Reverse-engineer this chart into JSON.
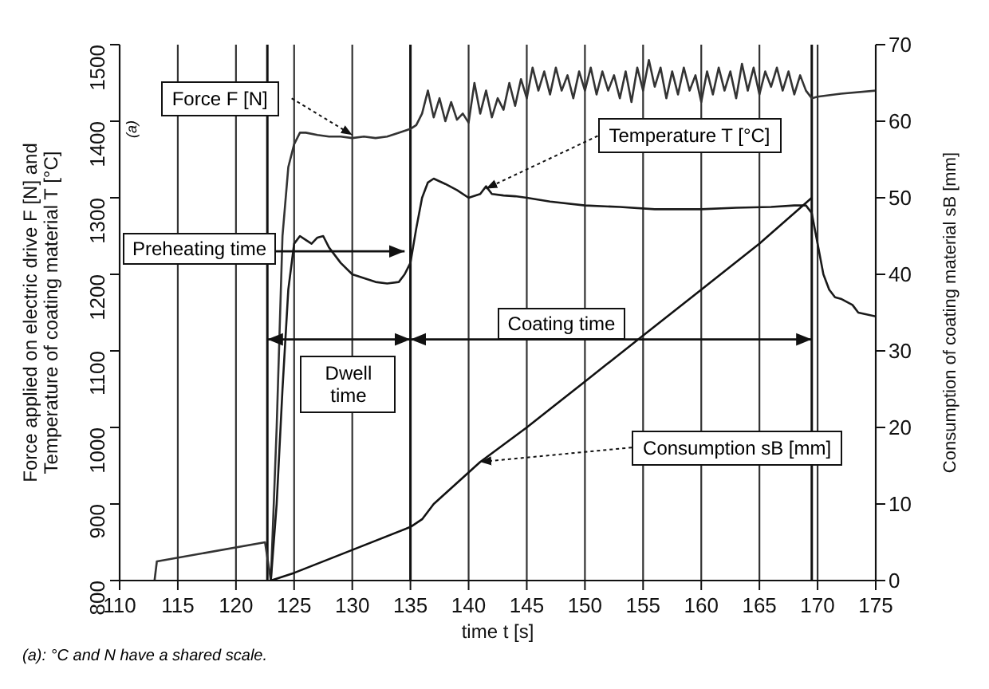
{
  "chart_data": {
    "type": "line",
    "xlabel": "time t [s]",
    "ylabel": "Force applied on electric drive F [N] and Temperature of coating material T [°C]",
    "y2label": "Consumption of coating material sB [mm]",
    "xlim": [
      110,
      175
    ],
    "xticks": [
      110,
      115,
      120,
      125,
      130,
      135,
      140,
      145,
      150,
      155,
      160,
      165,
      170,
      175
    ],
    "ylim": [
      800,
      1500
    ],
    "yticks": [
      800,
      900,
      1000,
      1100,
      1200,
      1300,
      1400,
      1500
    ],
    "y2lim": [
      0,
      70
    ],
    "y2ticks": [
      0,
      10,
      20,
      30,
      40,
      50,
      60,
      70
    ],
    "grid": true,
    "marker": "none",
    "line_style": "solid",
    "series": [
      {
        "color": "#333333",
        "x": [
          113,
          113.2,
          122.5,
          123,
          123.5,
          124,
          124.5,
          125,
          125.5,
          126,
          127,
          128,
          129,
          130,
          131,
          132,
          133,
          134,
          135,
          135.5,
          136,
          136.5,
          137,
          137.5,
          138,
          138.5,
          139,
          139.5,
          140,
          140.5,
          141,
          141.5,
          142,
          142.5,
          143,
          143.5,
          144,
          144.5,
          145,
          145.5,
          146,
          146.5,
          147,
          147.5,
          148,
          148.5,
          149,
          149.5,
          150,
          150.5,
          151,
          151.5,
          152,
          152.5,
          153,
          153.5,
          154,
          154.5,
          155,
          155.5,
          156,
          156.5,
          157,
          157.5,
          158,
          158.5,
          159,
          159.5,
          160,
          160.5,
          161,
          161.5,
          162,
          162.5,
          163,
          163.5,
          164,
          164.5,
          165,
          165.5,
          166,
          166.5,
          167,
          167.5,
          168,
          168.5,
          169,
          169.5,
          170,
          172,
          175
        ],
        "values": [
          800,
          825,
          850,
          800,
          1000,
          1250,
          1340,
          1370,
          1385,
          1385,
          1382,
          1380,
          1380,
          1378,
          1380,
          1378,
          1380,
          1385,
          1390,
          1395,
          1410,
          1440,
          1405,
          1430,
          1400,
          1425,
          1402,
          1410,
          1398,
          1450,
          1410,
          1440,
          1405,
          1430,
          1415,
          1450,
          1420,
          1455,
          1430,
          1470,
          1440,
          1465,
          1435,
          1470,
          1440,
          1460,
          1430,
          1465,
          1440,
          1470,
          1435,
          1465,
          1440,
          1460,
          1430,
          1465,
          1425,
          1470,
          1440,
          1480,
          1445,
          1470,
          1430,
          1465,
          1435,
          1470,
          1440,
          1460,
          1425,
          1465,
          1435,
          1470,
          1440,
          1465,
          1430,
          1475,
          1440,
          1470,
          1435,
          1465,
          1445,
          1470,
          1440,
          1465,
          1435,
          1460,
          1440,
          1430,
          1432,
          1436,
          1440
        ]
      },
      {
        "color": "#1a1a1a",
        "x": [
          123,
          123.5,
          124,
          124.5,
          125,
          125.5,
          126,
          126.5,
          127,
          127.5,
          128,
          129,
          130,
          131,
          132,
          133,
          134,
          134.5,
          135,
          135.5,
          136,
          136.5,
          137,
          138,
          139,
          140,
          141,
          141.5,
          142,
          143,
          144,
          145,
          147,
          150,
          153,
          156,
          160,
          163,
          166,
          168,
          169,
          169.5,
          170,
          170.5,
          171,
          171.5,
          172,
          173,
          173.5,
          175
        ],
        "values": [
          800,
          900,
          1050,
          1180,
          1240,
          1250,
          1245,
          1240,
          1248,
          1250,
          1235,
          1215,
          1200,
          1195,
          1190,
          1188,
          1190,
          1200,
          1215,
          1260,
          1300,
          1320,
          1325,
          1318,
          1310,
          1300,
          1305,
          1315,
          1305,
          1303,
          1302,
          1300,
          1295,
          1290,
          1288,
          1285,
          1285,
          1287,
          1288,
          1290,
          1290,
          1280,
          1240,
          1200,
          1180,
          1170,
          1168,
          1160,
          1150,
          1145
        ]
      },
      {
        "color": "#111111",
        "axis": "y2",
        "x": [
          123,
          125,
          130,
          135,
          136,
          137,
          141,
          145,
          150,
          155,
          160,
          165,
          169.5
        ],
        "values": [
          0,
          1,
          4,
          7,
          8,
          10,
          15.5,
          20,
          26,
          32,
          38,
          44,
          50
        ]
      }
    ],
    "ref_lines": [
      {
        "axis": "x",
        "value": 122.7
      },
      {
        "axis": "x",
        "value": 135
      },
      {
        "axis": "x",
        "value": 169.5
      }
    ],
    "annotations": [
      {
        "text": "Force F [N]",
        "x": 130,
        "y": 1382
      },
      {
        "text": "Temperature T [°C]",
        "x": 141.5,
        "y": 1312
      },
      {
        "text": "Consumption sB [mm]",
        "x": 141,
        "y": 955
      },
      {
        "text": "Preheating time",
        "x": 134.5,
        "y": 1230
      },
      "Dwell time",
      "Coating time",
      "(a)",
      "(a): °C and N have a shared scale."
    ]
  }
}
